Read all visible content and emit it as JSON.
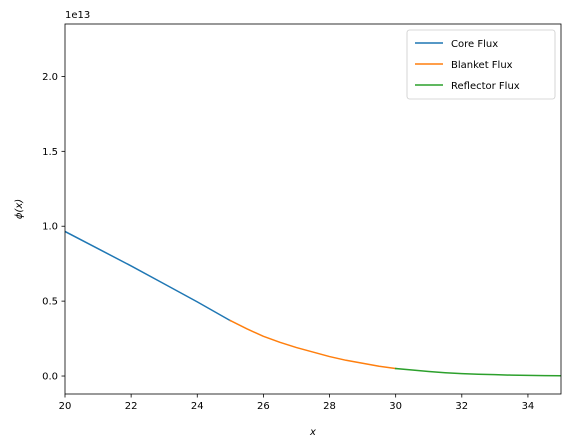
{
  "chart_data": {
    "type": "line",
    "title": "",
    "xlabel": "x",
    "ylabel": "ϕ(x)",
    "offset_label": "1e13",
    "xlim": [
      20,
      35
    ],
    "ylim": [
      -0.12,
      2.35
    ],
    "xticks": [
      20,
      22,
      24,
      26,
      28,
      30,
      32,
      34
    ],
    "yticks": [
      0.0,
      0.5,
      1.0,
      1.5,
      2.0
    ],
    "ytick_labels": [
      "0.0",
      "0.5",
      "1.0",
      "1.5",
      "2.0"
    ],
    "grid": false,
    "legend_position": "top-right",
    "series": [
      {
        "name": "Core Flux",
        "color": "#1f77b4",
        "x": [
          20,
          21,
          22,
          23,
          24,
          25
        ],
        "y": [
          0.965,
          0.85,
          0.735,
          0.615,
          0.495,
          0.37
        ]
      },
      {
        "name": "Blanket Flux",
        "color": "#ff7f0e",
        "x": [
          25,
          25.5,
          26,
          26.5,
          27,
          27.5,
          28,
          28.5,
          29,
          29.5,
          30
        ],
        "y": [
          0.37,
          0.315,
          0.265,
          0.225,
          0.19,
          0.16,
          0.13,
          0.105,
          0.085,
          0.065,
          0.05
        ]
      },
      {
        "name": "Reflector Flux",
        "color": "#2ca02c",
        "x": [
          30,
          30.5,
          31,
          31.5,
          32,
          32.5,
          33,
          33.5,
          34,
          34.5,
          35
        ],
        "y": [
          0.05,
          0.04,
          0.03,
          0.022,
          0.016,
          0.012,
          0.009,
          0.006,
          0.004,
          0.003,
          0.002
        ]
      }
    ]
  }
}
